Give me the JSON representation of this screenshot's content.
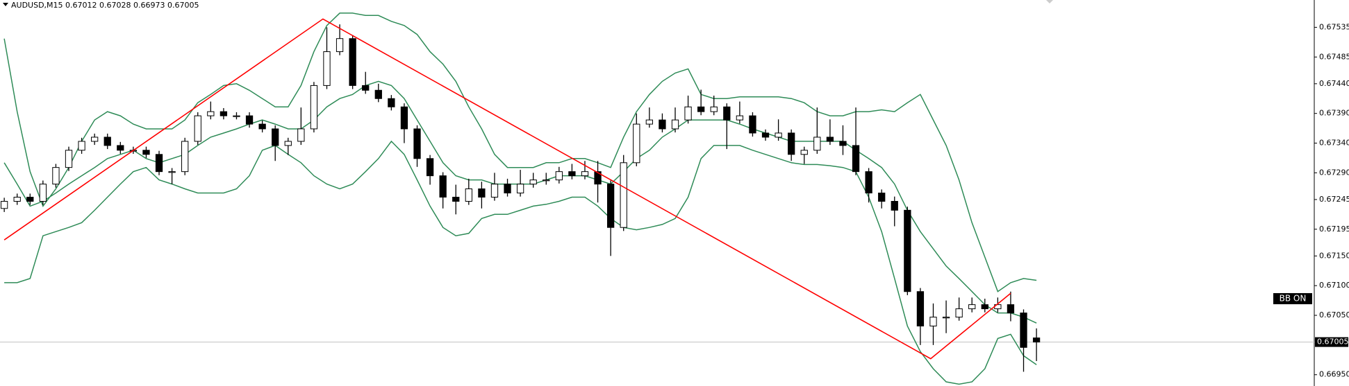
{
  "chart_data": {
    "type": "candlestick",
    "title": "AUDUSD,M15  0.67012 0.67028 0.66973 0.67005",
    "indicator_label": "BB ON",
    "up_color": "#ffffff",
    "down_color": "#000000",
    "wick_color": "#000000",
    "open": [
      0.6723,
      0.67242,
      0.67249,
      0.67242,
      0.67271,
      0.67299,
      0.67328,
      0.67343,
      0.6735,
      0.67336,
      0.67328,
      0.67328,
      0.67321,
      0.67292,
      0.67292,
      0.67343,
      0.67386,
      0.67393,
      0.67386,
      0.67386,
      0.67372,
      0.67364,
      0.67336,
      0.67343,
      0.67364,
      0.67437,
      0.67494,
      0.67516,
      0.67437,
      0.67429,
      0.67415,
      0.67401,
      0.67364,
      0.67314,
      0.67285,
      0.67249,
      0.67242,
      0.67263,
      0.67249,
      0.67271,
      0.67256,
      0.67271,
      0.67278,
      0.67278,
      0.67292,
      0.67285,
      0.67292,
      0.67271,
      0.67198,
      0.67307,
      0.67372,
      0.67379,
      0.67364,
      0.67379,
      0.67401,
      0.67393,
      0.67401,
      0.67379,
      0.67386,
      0.67357,
      0.6735,
      0.67357,
      0.67321,
      0.67328,
      0.6735,
      0.67343,
      0.67336,
      0.67292,
      0.67256,
      0.67242,
      0.67227,
      0.6709,
      0.67032,
      0.67047,
      0.67047,
      0.67061,
      0.67068,
      0.67061,
      0.67068,
      0.67054,
      0.67012
    ],
    "high": [
      0.67248,
      0.67255,
      0.67255,
      0.67277,
      0.67305,
      0.67334,
      0.67349,
      0.67356,
      0.67356,
      0.67342,
      0.67334,
      0.67334,
      0.67327,
      0.67298,
      0.67349,
      0.67392,
      0.6741,
      0.67399,
      0.67392,
      0.67392,
      0.67378,
      0.6737,
      0.67349,
      0.674,
      0.67443,
      0.67535,
      0.6754,
      0.67522,
      0.6746,
      0.6744,
      0.67421,
      0.67407,
      0.6737,
      0.6732,
      0.67291,
      0.6727,
      0.6728,
      0.67275,
      0.6729,
      0.6728,
      0.67295,
      0.6729,
      0.6729,
      0.673,
      0.67305,
      0.6731,
      0.6731,
      0.67277,
      0.6732,
      0.6739,
      0.674,
      0.6739,
      0.674,
      0.6742,
      0.6743,
      0.6742,
      0.67407,
      0.6741,
      0.67392,
      0.67363,
      0.6738,
      0.67363,
      0.67334,
      0.674,
      0.6738,
      0.6737,
      0.674,
      0.67298,
      0.67262,
      0.6725,
      0.67233,
      0.67096,
      0.6707,
      0.67075,
      0.6708,
      0.6708,
      0.67078,
      0.6708,
      0.6709,
      0.6706,
      0.67028
    ],
    "low": [
      0.67224,
      0.67236,
      0.67236,
      0.67236,
      0.67265,
      0.67293,
      0.67322,
      0.67337,
      0.6733,
      0.67322,
      0.67322,
      0.67315,
      0.67286,
      0.67271,
      0.67286,
      0.67337,
      0.6738,
      0.6738,
      0.6738,
      0.67366,
      0.67358,
      0.6731,
      0.6732,
      0.67337,
      0.67358,
      0.67431,
      0.67488,
      0.67431,
      0.67423,
      0.67409,
      0.67395,
      0.6734,
      0.673,
      0.6727,
      0.6723,
      0.6722,
      0.67236,
      0.6723,
      0.67243,
      0.6725,
      0.6725,
      0.67265,
      0.6727,
      0.67272,
      0.67279,
      0.67279,
      0.6724,
      0.6715,
      0.67192,
      0.67301,
      0.67366,
      0.67358,
      0.67358,
      0.67373,
      0.67387,
      0.67387,
      0.6733,
      0.67373,
      0.67351,
      0.67344,
      0.67344,
      0.6731,
      0.67305,
      0.67322,
      0.67337,
      0.6732,
      0.67286,
      0.6724,
      0.6723,
      0.672,
      0.67084,
      0.67,
      0.67,
      0.6702,
      0.67041,
      0.67055,
      0.67055,
      0.67055,
      0.6704,
      0.66955,
      0.66973
    ],
    "close": [
      0.67242,
      0.67249,
      0.67242,
      0.67271,
      0.67299,
      0.67328,
      0.67343,
      0.6735,
      0.67336,
      0.67328,
      0.67328,
      0.67321,
      0.67292,
      0.67292,
      0.67343,
      0.67386,
      0.67393,
      0.67386,
      0.67386,
      0.67372,
      0.67364,
      0.67336,
      0.67343,
      0.67364,
      0.67437,
      0.67494,
      0.67516,
      0.67437,
      0.67429,
      0.67415,
      0.67401,
      0.67364,
      0.67314,
      0.67285,
      0.67249,
      0.67242,
      0.67263,
      0.67249,
      0.67271,
      0.67256,
      0.67271,
      0.67278,
      0.67278,
      0.67292,
      0.67285,
      0.67292,
      0.67271,
      0.67198,
      0.67307,
      0.67372,
      0.67379,
      0.67364,
      0.67379,
      0.67401,
      0.67393,
      0.67401,
      0.67379,
      0.67386,
      0.67357,
      0.6735,
      0.67357,
      0.67321,
      0.67328,
      0.6735,
      0.67343,
      0.67336,
      0.67292,
      0.67256,
      0.67242,
      0.67227,
      0.6709,
      0.67032,
      0.67047,
      0.67047,
      0.67061,
      0.67068,
      0.67061,
      0.67068,
      0.67054,
      0.66996,
      0.67005
    ],
    "bands": [
      {
        "color": "#2e8b57",
        "values": [
          0.67516,
          0.67393,
          0.67292,
          0.67234,
          0.67263,
          0.67299,
          0.67343,
          0.67379,
          0.67393,
          0.67386,
          0.67372,
          0.67364,
          0.67364,
          0.67364,
          0.67379,
          0.67408,
          0.67422,
          0.67437,
          0.6744,
          0.67429,
          0.67415,
          0.67401,
          0.67401,
          0.67437,
          0.67494,
          0.67538,
          0.67559,
          0.67559,
          0.67555,
          0.67555,
          0.67545,
          0.67538,
          0.67523,
          0.67494,
          0.67473,
          0.67444,
          0.67401,
          0.67364,
          0.67321,
          0.67299,
          0.67299,
          0.67299,
          0.67307,
          0.67307,
          0.67314,
          0.67314,
          0.67307,
          0.67299,
          0.6735,
          0.67393,
          0.67422,
          0.67444,
          0.67458,
          0.67465,
          0.67422,
          0.67415,
          0.67415,
          0.67418,
          0.67418,
          0.67418,
          0.67418,
          0.67415,
          0.67408,
          0.67393,
          0.67386,
          0.67386,
          0.67393,
          0.67393,
          0.67396,
          0.67393,
          0.67408,
          0.67422,
          0.67379,
          0.67336,
          0.67278,
          0.67206,
          0.67148,
          0.6709,
          0.67105,
          0.67112,
          0.67109
        ]
      },
      {
        "color": "#2e8b57",
        "values": [
          0.67307,
          0.67271,
          0.67234,
          0.67242,
          0.67256,
          0.67271,
          0.67285,
          0.67299,
          0.67314,
          0.67321,
          0.67328,
          0.67314,
          0.67307,
          0.67314,
          0.67321,
          0.67336,
          0.6735,
          0.67357,
          0.67364,
          0.67372,
          0.67379,
          0.67372,
          0.67364,
          0.67364,
          0.67379,
          0.67401,
          0.67415,
          0.67422,
          0.67437,
          0.67444,
          0.67437,
          0.67415,
          0.67379,
          0.67343,
          0.67307,
          0.67285,
          0.67278,
          0.67278,
          0.67271,
          0.67271,
          0.67271,
          0.67271,
          0.67278,
          0.67285,
          0.67285,
          0.67285,
          0.67278,
          0.67271,
          0.67292,
          0.67314,
          0.67328,
          0.6735,
          0.67364,
          0.67379,
          0.67379,
          0.67379,
          0.67379,
          0.67372,
          0.67364,
          0.67357,
          0.6735,
          0.67343,
          0.67343,
          0.67343,
          0.67343,
          0.67343,
          0.67328,
          0.67314,
          0.67299,
          0.67271,
          0.67227,
          0.67191,
          0.67162,
          0.67133,
          0.67112,
          0.6709,
          0.67068,
          0.67054,
          0.67054,
          0.67047,
          0.67037
        ]
      },
      {
        "color": "#2e8b57",
        "values": [
          0.67105,
          0.67105,
          0.67112,
          0.67184,
          0.67191,
          0.67198,
          0.67206,
          0.67227,
          0.67249,
          0.67271,
          0.67292,
          0.67299,
          0.67278,
          0.67271,
          0.67263,
          0.67256,
          0.67256,
          0.67256,
          0.67263,
          0.67285,
          0.67328,
          0.67336,
          0.67321,
          0.67307,
          0.67285,
          0.67271,
          0.67263,
          0.67271,
          0.67292,
          0.67314,
          0.67343,
          0.67321,
          0.67278,
          0.67234,
          0.67198,
          0.67184,
          0.67188,
          0.67213,
          0.6722,
          0.6722,
          0.67227,
          0.67234,
          0.67237,
          0.67242,
          0.67249,
          0.67249,
          0.67234,
          0.67213,
          0.67198,
          0.67194,
          0.67198,
          0.67203,
          0.67213,
          0.67249,
          0.67314,
          0.67336,
          0.67336,
          0.67336,
          0.67328,
          0.67321,
          0.67314,
          0.67307,
          0.67304,
          0.67304,
          0.67302,
          0.67299,
          0.67292,
          0.67249,
          0.67191,
          0.67112,
          0.67032,
          0.66989,
          0.6696,
          0.66938,
          0.66934,
          0.66938,
          0.6696,
          0.67011,
          0.67018,
          0.66982,
          0.66967
        ]
      }
    ],
    "zigzag": {
      "color": "#ff0000",
      "x": [
        0,
        24.7,
        71.8,
        78
      ],
      "values": [
        0.67177,
        0.67549,
        0.66977,
        0.67087
      ]
    },
    "current_price": 0.67005,
    "xlim": [
      -0.33,
      101.53
    ],
    "ylim": [
      0.66931,
      0.67581
    ],
    "yticks": [
      0.67535,
      0.67485,
      {
        "value": 0.6744,
        "label": "0.67440"
      },
      {
        "value": 0.6739,
        "label": "0.67390"
      },
      {
        "value": 0.6734,
        "label": "0.67340"
      },
      {
        "value": 0.6729,
        "label": "0.67290"
      },
      0.67245,
      0.67195,
      {
        "value": 0.6715,
        "label": "0.67150"
      },
      {
        "value": 0.671,
        "label": "0.67100"
      },
      {
        "value": 0.6705,
        "label": "0.67050"
      },
      {
        "value": 0.6695,
        "label": "0.66950"
      }
    ]
  }
}
